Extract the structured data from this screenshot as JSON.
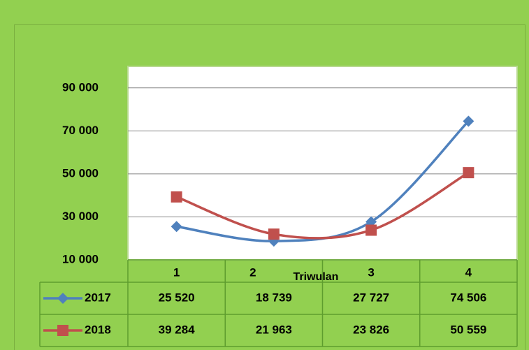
{
  "chart_data": {
    "type": "line",
    "x_label": "Triwulan",
    "categories": [
      "1",
      "2",
      "3",
      "4"
    ],
    "series": [
      {
        "name": "2017",
        "color": "#4f81bd",
        "marker": "diamond",
        "values": [
          25520,
          18739,
          27727,
          74506
        ],
        "value_labels": [
          "25 520",
          "18 739",
          "27 727",
          "74 506"
        ]
      },
      {
        "name": "2018",
        "color": "#c0504d",
        "marker": "square",
        "values": [
          39284,
          21963,
          23826,
          50559
        ],
        "value_labels": [
          "39 284",
          "21 963",
          "23 826",
          "50 559"
        ]
      }
    ],
    "ylim": [
      10000,
      100000
    ],
    "yticks": [
      {
        "value": 10000,
        "label": "10 000"
      },
      {
        "value": 30000,
        "label": "30 000"
      },
      {
        "value": 50000,
        "label": "50 000"
      },
      {
        "value": 70000,
        "label": "70 000"
      },
      {
        "value": 90000,
        "label": "90 000"
      }
    ],
    "grid": true,
    "smooth": true
  }
}
